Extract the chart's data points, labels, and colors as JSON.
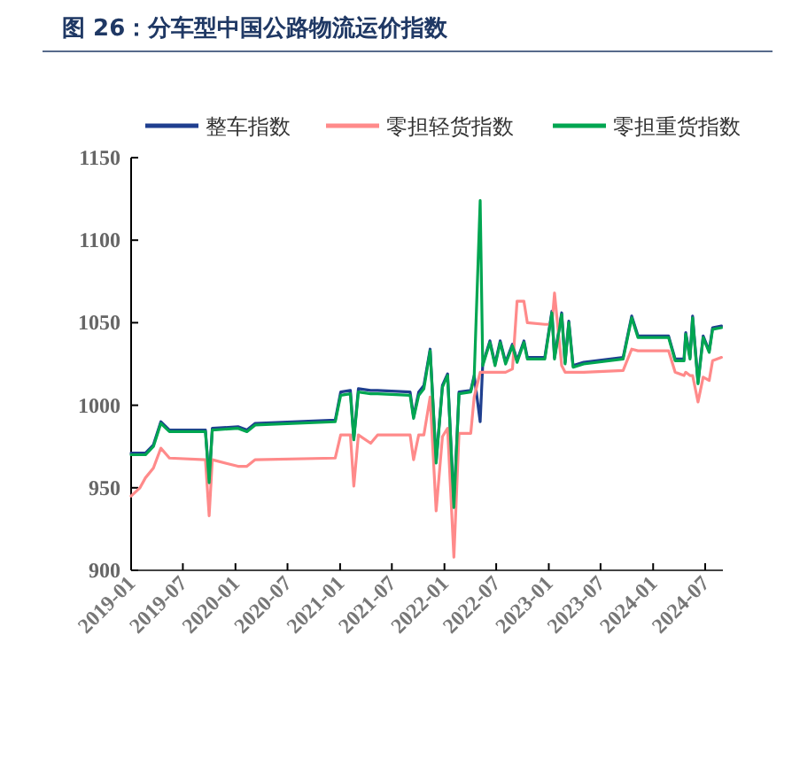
{
  "chart_data": {
    "type": "line",
    "title": "图 26：分车型中国公路物流运价指数",
    "x": [
      "2019-01-01",
      "2019-02-01",
      "2019-02-20",
      "2019-03-20",
      "2019-04-15",
      "2019-05-15",
      "2019-09-18",
      "2019-10-01",
      "2019-10-12",
      "2020-01-10",
      "2020-02-10",
      "2020-03-10",
      "2020-12-15",
      "2021-01-03",
      "2021-02-06",
      "2021-02-18",
      "2021-03-06",
      "2021-04-18",
      "2021-05-12",
      "2021-09-03",
      "2021-09-15",
      "2021-10-03",
      "2021-10-21",
      "2021-11-12",
      "2021-12-03",
      "2021-12-25",
      "2022-01-12",
      "2022-02-03",
      "2022-02-21",
      "2022-04-03",
      "2022-04-15",
      "2022-05-06",
      "2022-05-15",
      "2022-06-09",
      "2022-06-27",
      "2022-07-15",
      "2022-08-03",
      "2022-08-27",
      "2022-09-12",
      "2022-10-06",
      "2022-10-18",
      "2022-12-18",
      "2023-01-12",
      "2023-01-21",
      "2023-02-15",
      "2023-02-27",
      "2023-03-12",
      "2023-03-27",
      "2023-05-03",
      "2023-09-18",
      "2023-10-18",
      "2023-11-09",
      "2024-02-24",
      "2024-03-18",
      "2024-04-18",
      "2024-04-24",
      "2024-05-09",
      "2024-05-18",
      "2024-06-06",
      "2024-06-24",
      "2024-07-15",
      "2024-07-27",
      "2024-08-27"
    ],
    "series": [
      {
        "name": "整车指数",
        "color": "#1f3f8f",
        "values": [
          971,
          971,
          971,
          976,
          990,
          985,
          985,
          954,
          986,
          987,
          985,
          989,
          991,
          1008,
          1009,
          980,
          1010,
          1009,
          1009,
          1008,
          993,
          1008,
          1012,
          1034,
          966,
          1012,
          1019,
          939,
          1008,
          1009,
          1018,
          990,
          1025,
          1039,
          1025,
          1039,
          1026,
          1037,
          1027,
          1039,
          1029,
          1029,
          1057,
          1029,
          1056,
          1026,
          1051,
          1024,
          1026,
          1029,
          1054,
          1042,
          1042,
          1028,
          1028,
          1044,
          1029,
          1054,
          1014,
          1042,
          1033,
          1047,
          1048
        ]
      },
      {
        "name": "零担轻货指数",
        "color": "#ff8a8a",
        "values": [
          945,
          950,
          956,
          962,
          974,
          968,
          967,
          933,
          967,
          963,
          963,
          967,
          968,
          982,
          982,
          951,
          982,
          977,
          982,
          982,
          967,
          982,
          982,
          1005,
          936,
          981,
          986,
          908,
          983,
          983,
          1005,
          1020,
          1020,
          1020,
          1020,
          1020,
          1020,
          1022,
          1063,
          1063,
          1050,
          1049,
          1049,
          1068,
          1024,
          1020,
          1020,
          1020,
          1020,
          1021,
          1034,
          1033,
          1033,
          1020,
          1018,
          1020,
          1018,
          1018,
          1002,
          1017,
          1015,
          1027,
          1029
        ]
      },
      {
        "name": "零担重货指数",
        "color": "#00a651",
        "values": [
          970,
          970,
          970,
          975,
          989,
          984,
          984,
          953,
          985,
          986,
          984,
          988,
          990,
          1006,
          1007,
          979,
          1008,
          1007,
          1007,
          1006,
          992,
          1006,
          1010,
          1033,
          965,
          1011,
          1018,
          938,
          1007,
          1008,
          1017,
          1124,
          1024,
          1038,
          1024,
          1038,
          1025,
          1036,
          1026,
          1038,
          1028,
          1028,
          1056,
          1028,
          1055,
          1025,
          1050,
          1023,
          1025,
          1028,
          1053,
          1041,
          1041,
          1027,
          1027,
          1043,
          1028,
          1053,
          1013,
          1041,
          1032,
          1046,
          1047
        ]
      }
    ],
    "xlim": [
      "2019-01-01",
      "2024-09-01"
    ],
    "xticks": [
      "2019-01",
      "2019-07",
      "2020-01",
      "2020-07",
      "2021-01",
      "2021-07",
      "2022-01",
      "2022-07",
      "2023-01",
      "2023-07",
      "2024-01",
      "2024-07"
    ],
    "ylim": [
      900,
      1150
    ],
    "yticks": [
      900,
      950,
      1000,
      1050,
      1100,
      1150
    ],
    "grid": false,
    "legend": "top",
    "line_style": "solid",
    "marker": "none"
  }
}
